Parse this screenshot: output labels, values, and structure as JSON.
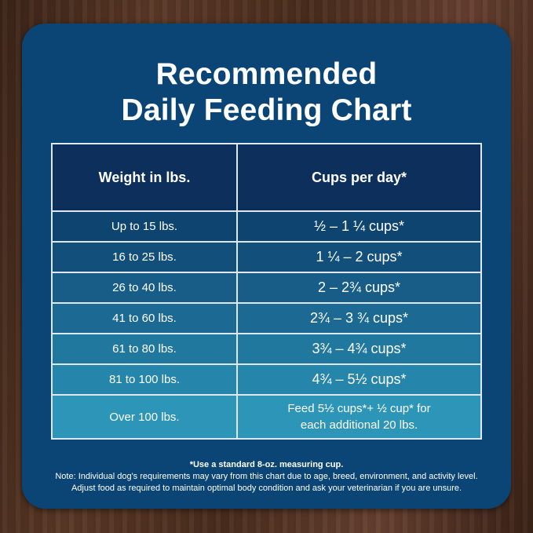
{
  "title_line1": "Recommended",
  "title_line2": "Daily Feeding Chart",
  "table": {
    "headers": [
      "Weight in lbs.",
      "Cups per day*"
    ],
    "rows": [
      {
        "weight": "Up to 15 lbs.",
        "cups": "½ – 1 ¼ cups*",
        "color": "#0e4470"
      },
      {
        "weight": "16 to 25 lbs.",
        "cups": "1 ¼ –  2 cups*",
        "color": "#124f7b"
      },
      {
        "weight": "26 to 40 lbs.",
        "cups": "2 – 2¾ cups*",
        "color": "#175d87"
      },
      {
        "weight": "41 to 60 lbs.",
        "cups": "2¾ – 3 ¾ cups*",
        "color": "#1c6a93"
      },
      {
        "weight": "61 to 80 lbs.",
        "cups": "3¾ – 4¾ cups*",
        "color": "#21789f"
      },
      {
        "weight": "81 to 100 lbs.",
        "cups": "4¾ – 5½ cups*",
        "color": "#2685aa"
      },
      {
        "weight": "Over 100 lbs.",
        "cups_line1": "Feed 5½ cups*+ ½ cup* for",
        "cups_line2": "each additional 20 lbs.",
        "color": "#2c95b8"
      }
    ]
  },
  "footnote": {
    "line1": "*Use a standard 8-oz. measuring cup.",
    "line2": "Note: Individual dog's requirements may vary from this chart due to age, breed, environment, and activity level.",
    "line3": "Adjust food as required to maintain optimal body condition and ask your veterinarian if you are unsure."
  }
}
